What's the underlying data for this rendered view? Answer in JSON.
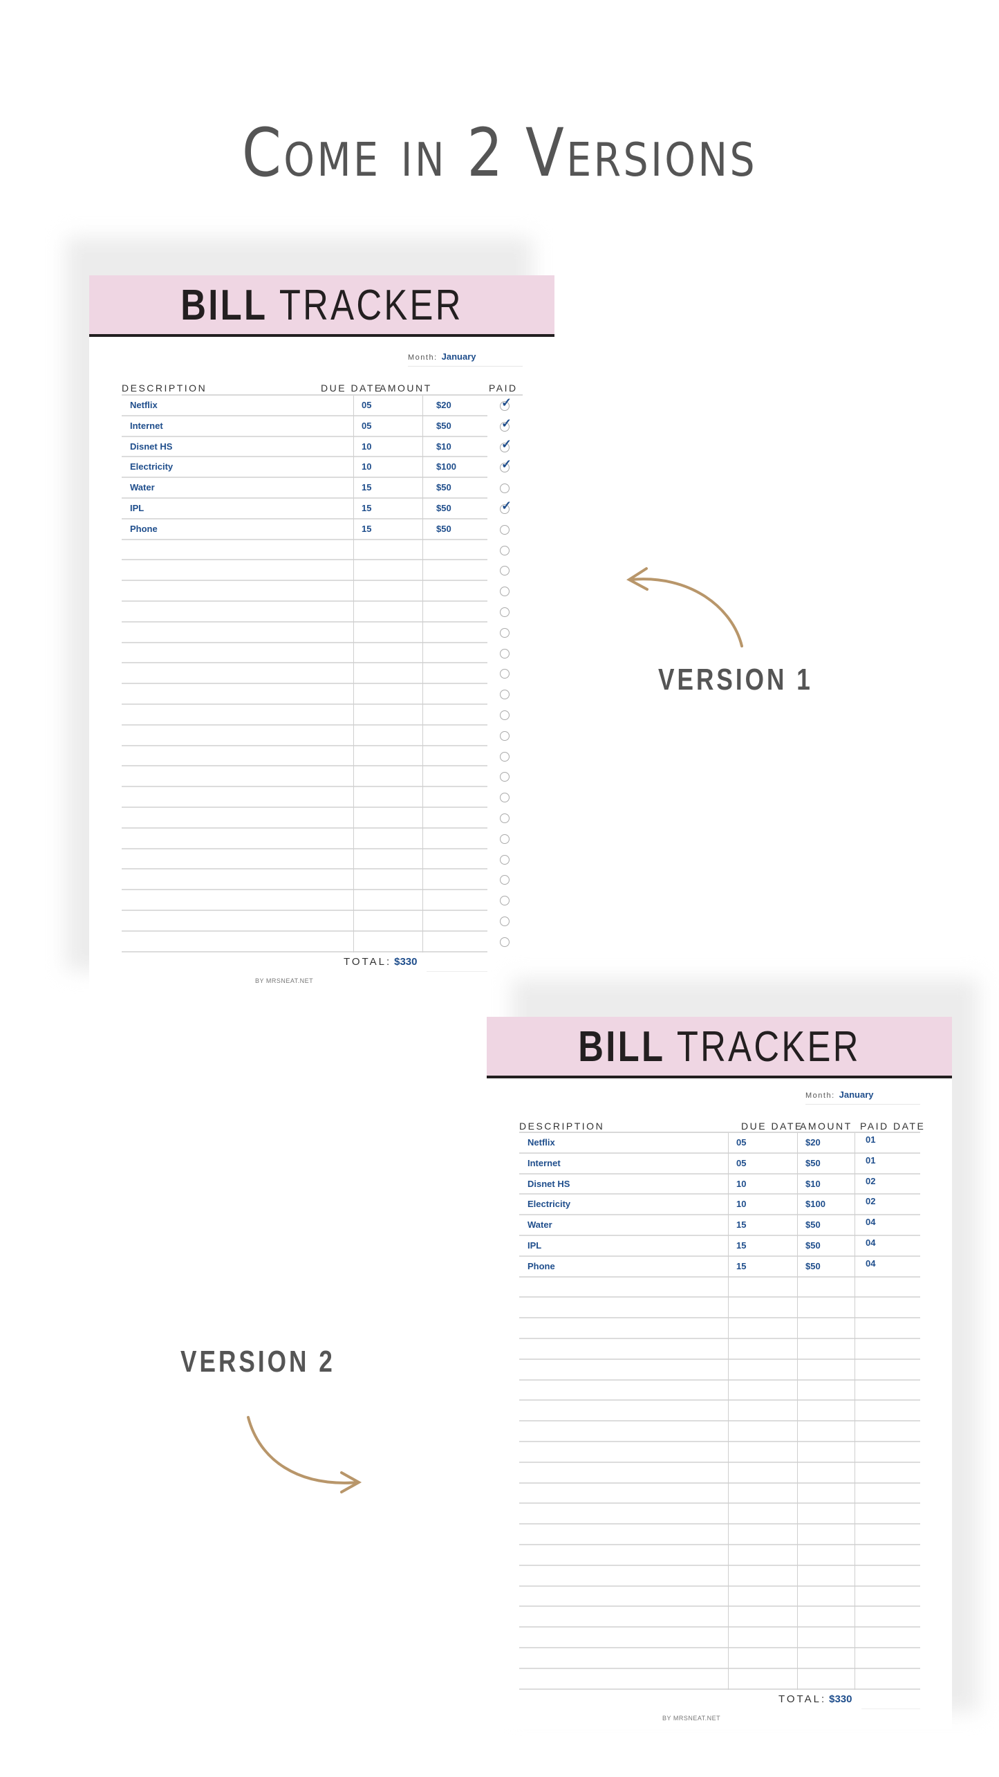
{
  "headline": "Come in 2 Versions",
  "labels": {
    "version1": "VERSION 1",
    "version2": "VERSION 2"
  },
  "colors": {
    "header_band": "#efd6e3",
    "entry_text": "#1f4e8c",
    "arrow_gold": "#b8966a"
  },
  "version1": {
    "title_bold": "BILL",
    "title_light": "TRACKER",
    "month_label": "Month:",
    "month_value": "January",
    "columns": [
      "DESCRIPTION",
      "DUE DATE",
      "AMOUNT",
      "PAID"
    ],
    "rows": [
      {
        "description": "Netflix",
        "due": "05",
        "amount": "$20",
        "paid": true
      },
      {
        "description": "Internet",
        "due": "05",
        "amount": "$50",
        "paid": true
      },
      {
        "description": "Disnet HS",
        "due": "10",
        "amount": "$10",
        "paid": true
      },
      {
        "description": "Electricity",
        "due": "10",
        "amount": "$100",
        "paid": true
      },
      {
        "description": "Water",
        "due": "15",
        "amount": "$50",
        "paid": false
      },
      {
        "description": "IPL",
        "due": "15",
        "amount": "$50",
        "paid": true
      },
      {
        "description": "Phone",
        "due": "15",
        "amount": "$50",
        "paid": false
      }
    ],
    "total_label": "TOTAL:",
    "total_value": "$330",
    "footer": "BY MRSNEAT.NET"
  },
  "version2": {
    "title_bold": "BILL",
    "title_light": "TRACKER",
    "month_label": "Month:",
    "month_value": "January",
    "columns": [
      "DESCRIPTION",
      "DUE DATE",
      "AMOUNT",
      "PAID DATE"
    ],
    "rows": [
      {
        "description": "Netflix",
        "due": "05",
        "amount": "$20",
        "paid_date": "01"
      },
      {
        "description": "Internet",
        "due": "05",
        "amount": "$50",
        "paid_date": "01"
      },
      {
        "description": "Disnet HS",
        "due": "10",
        "amount": "$10",
        "paid_date": "02"
      },
      {
        "description": "Electricity",
        "due": "10",
        "amount": "$100",
        "paid_date": "02"
      },
      {
        "description": "Water",
        "due": "15",
        "amount": "$50",
        "paid_date": "04"
      },
      {
        "description": "IPL",
        "due": "15",
        "amount": "$50",
        "paid_date": "04"
      },
      {
        "description": "Phone",
        "due": "15",
        "amount": "$50",
        "paid_date": "04"
      }
    ],
    "total_label": "TOTAL:",
    "total_value": "$330",
    "footer": "BY MRSNEAT.NET"
  }
}
